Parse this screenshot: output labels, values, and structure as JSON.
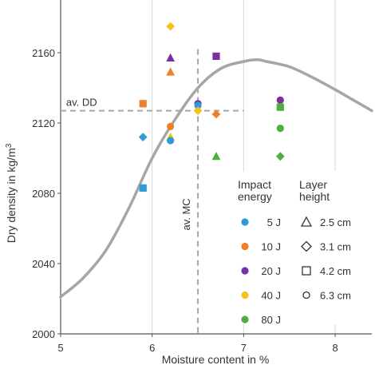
{
  "chart_data": {
    "type": "scatter",
    "xlabel": "Moisture content in %",
    "ylabel_main": "Dry density in kg/m",
    "ylabel_sup": "3",
    "xlim": [
      5,
      8.4
    ],
    "ylim": [
      2000,
      2190
    ],
    "xticks": [
      5,
      6,
      7,
      8
    ],
    "yticks": [
      2000,
      2040,
      2080,
      2120,
      2160
    ],
    "grid": "vertical",
    "annotations": {
      "avg_dd": {
        "label": "av. DD",
        "y": 2127
      },
      "avg_mc": {
        "label": "av. MC",
        "x": 6.5
      }
    },
    "curve": {
      "name": "compaction curve",
      "x": [
        5.0,
        5.25,
        5.5,
        5.75,
        6.0,
        6.25,
        6.5,
        6.75,
        7.0,
        7.15,
        7.25,
        7.5,
        7.75,
        8.0,
        8.2,
        8.4
      ],
      "y": [
        2021,
        2032,
        2048,
        2072,
        2100,
        2122,
        2140,
        2151,
        2155,
        2156,
        2155,
        2152,
        2146,
        2139,
        2133,
        2127
      ]
    },
    "legend": {
      "position": "lower-right",
      "energy_title": [
        "Impact",
        "energy"
      ],
      "height_title": [
        "Layer",
        "height"
      ],
      "energies": [
        {
          "label": "5 J",
          "color": "#2e9ad6"
        },
        {
          "label": "10 J",
          "color": "#f07f2a"
        },
        {
          "label": "20 J",
          "color": "#7b2fa3"
        },
        {
          "label": "40 J",
          "color": "#f7c11b"
        },
        {
          "label": "80 J",
          "color": "#4caf3e"
        }
      ],
      "heights": [
        {
          "label": "2.5 cm",
          "shape": "triangle"
        },
        {
          "label": "3.1 cm",
          "shape": "diamond"
        },
        {
          "label": "4.2 cm",
          "shape": "square"
        },
        {
          "label": "6.3 cm",
          "shape": "circle"
        }
      ]
    },
    "points": [
      {
        "x": 5.9,
        "y": 2131,
        "energy": "10 J",
        "shape": "square"
      },
      {
        "x": 5.9,
        "y": 2112,
        "energy": "5 J",
        "shape": "diamond"
      },
      {
        "x": 5.9,
        "y": 2083,
        "energy": "5 J",
        "shape": "square"
      },
      {
        "x": 6.2,
        "y": 2175,
        "energy": "40 J",
        "shape": "diamond"
      },
      {
        "x": 6.2,
        "y": 2157,
        "energy": "20 J",
        "shape": "triangle"
      },
      {
        "x": 6.2,
        "y": 2149,
        "energy": "10 J",
        "shape": "triangle"
      },
      {
        "x": 6.2,
        "y": 2118,
        "energy": "10 J",
        "shape": "circle"
      },
      {
        "x": 6.2,
        "y": 2112,
        "energy": "40 J",
        "shape": "triangle"
      },
      {
        "x": 6.2,
        "y": 2110,
        "energy": "5 J",
        "shape": "circle"
      },
      {
        "x": 6.5,
        "y": 2131,
        "energy": "20 J",
        "shape": "circle"
      },
      {
        "x": 6.5,
        "y": 2130,
        "energy": "5 J",
        "shape": "circle"
      },
      {
        "x": 6.5,
        "y": 2127,
        "energy": "40 J",
        "shape": "diamond"
      },
      {
        "x": 6.7,
        "y": 2158,
        "energy": "20 J",
        "shape": "square"
      },
      {
        "x": 6.7,
        "y": 2125,
        "energy": "10 J",
        "shape": "diamond"
      },
      {
        "x": 6.7,
        "y": 2101,
        "energy": "80 J",
        "shape": "triangle"
      },
      {
        "x": 7.4,
        "y": 2133,
        "energy": "20 J",
        "shape": "circle"
      },
      {
        "x": 7.4,
        "y": 2129,
        "energy": "80 J",
        "shape": "square"
      },
      {
        "x": 7.4,
        "y": 2117,
        "energy": "80 J",
        "shape": "circle"
      },
      {
        "x": 7.4,
        "y": 2101,
        "energy": "80 J",
        "shape": "diamond"
      }
    ]
  }
}
